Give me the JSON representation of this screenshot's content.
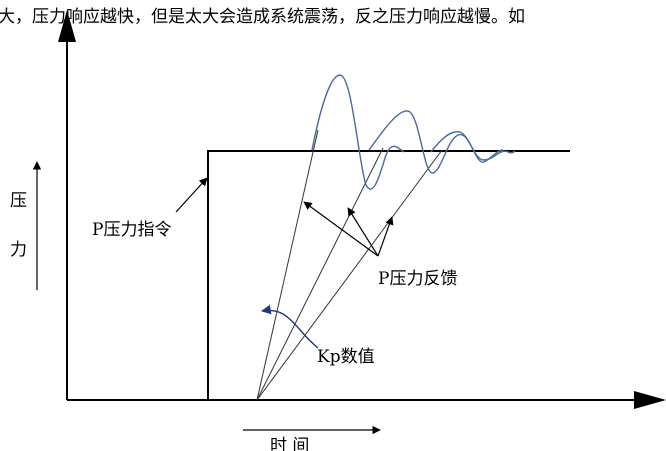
{
  "header_text": "大，压力响应越快，但是太大会造成系统震荡，反之压力响应越慢。如",
  "labels": {
    "y_axis_char_1": "压",
    "y_axis_char_2": "力",
    "command": "P压力指令",
    "feedback": "P压力反馈",
    "kp": "Kp数值",
    "x_axis": "时 间"
  },
  "colors": {
    "axis": "#000000",
    "response_curve": "#4a6a99",
    "kp_arrow": "#1f3a7a"
  }
}
